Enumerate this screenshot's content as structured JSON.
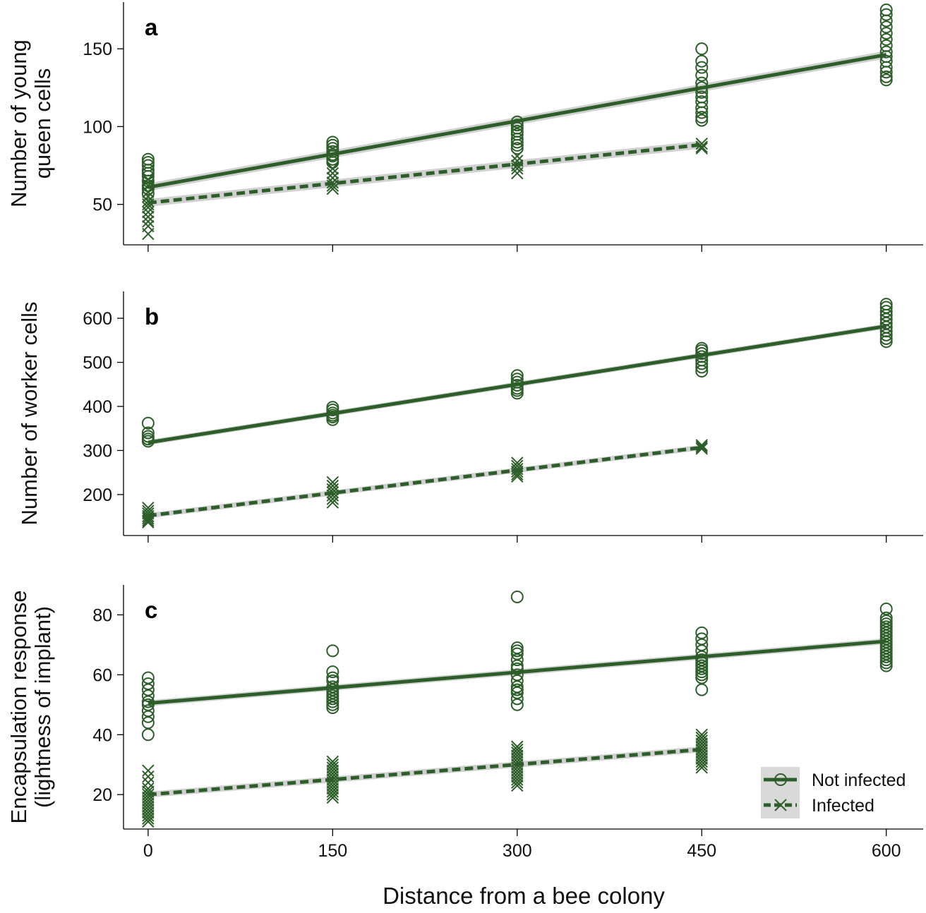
{
  "colors": {
    "series": "#2d5e2a",
    "ci_band": "#c8c8c8",
    "legend_bg": "#d9d9d9"
  },
  "xlabel": "Distance from a bee colony",
  "x_ticks": [
    0,
    150,
    300,
    450,
    600
  ],
  "legend": {
    "not_infected": "Not infected",
    "infected": "Infected",
    "placement": "bottom-right of panel c"
  },
  "chart_data": [
    {
      "type": "scatter",
      "panel": "a",
      "ylabel_lines": [
        "Number of young",
        "queen cells"
      ],
      "ylim": [
        24,
        180
      ],
      "xlim": [
        -20,
        630
      ],
      "yticks": [
        50,
        100,
        150
      ],
      "series": [
        {
          "name": "Not infected",
          "marker": "circle",
          "line": "solid",
          "fit": {
            "intercept": 61,
            "slope": 0.142,
            "xmax": 600,
            "ci": 2.5
          },
          "points": [
            {
              "x": 0,
              "y": [
                79,
                77,
                75,
                72,
                70,
                68,
                65,
                62,
                60,
                57
              ]
            },
            {
              "x": 150,
              "y": [
                90,
                88,
                86,
                84,
                82,
                81,
                79,
                77
              ]
            },
            {
              "x": 300,
              "y": [
                103,
                101,
                99,
                97,
                95,
                92,
                90,
                88,
                86
              ]
            },
            {
              "x": 450,
              "y": [
                150,
                142,
                138,
                133,
                128,
                125,
                122,
                119,
                116,
                112,
                109,
                106,
                104
              ]
            },
            {
              "x": 600,
              "y": [
                175,
                172,
                168,
                164,
                160,
                156,
                152,
                148,
                145,
                142,
                138,
                135,
                132,
                130
              ]
            }
          ]
        },
        {
          "name": "Infected",
          "marker": "x",
          "line": "dashed",
          "fit": {
            "intercept": 51,
            "slope": 0.083,
            "xmax": 450,
            "ci": 2.5
          },
          "points": [
            {
              "x": 0,
              "y": [
                66,
                62,
                58,
                55,
                52,
                50,
                48,
                45,
                42,
                39,
                36,
                31
              ]
            },
            {
              "x": 150,
              "y": [
                73,
                70,
                67,
                64,
                62,
                60
              ]
            },
            {
              "x": 300,
              "y": [
                81,
                78,
                75,
                73,
                70
              ]
            },
            {
              "x": 450,
              "y": [
                89,
                87,
                86
              ]
            }
          ]
        }
      ]
    },
    {
      "type": "scatter",
      "panel": "b",
      "ylabel_lines": [
        "Number of worker cells"
      ],
      "ylim": [
        107,
        661
      ],
      "xlim": [
        -20,
        630
      ],
      "yticks": [
        200,
        300,
        400,
        500,
        600
      ],
      "series": [
        {
          "name": "Not infected",
          "marker": "circle",
          "line": "solid",
          "fit": {
            "intercept": 318,
            "slope": 0.44,
            "xmax": 600,
            "ci": 6
          },
          "points": [
            {
              "x": 0,
              "y": [
                362,
                340,
                332,
                326,
                321
              ]
            },
            {
              "x": 150,
              "y": [
                398,
                392,
                385,
                380,
                376,
                370
              ]
            },
            {
              "x": 300,
              "y": [
                470,
                462,
                455,
                448,
                441,
                436,
                430
              ]
            },
            {
              "x": 450,
              "y": [
                532,
                527,
                520,
                513,
                505,
                497,
                489,
                480
              ]
            },
            {
              "x": 600,
              "y": [
                632,
                625,
                616,
                607,
                598,
                589,
                580,
                571,
                562,
                554,
                547
              ]
            }
          ]
        },
        {
          "name": "Infected",
          "marker": "x",
          "line": "dashed",
          "fit": {
            "intercept": 152,
            "slope": 0.344,
            "xmax": 450,
            "ci": 6
          },
          "points": [
            {
              "x": 0,
              "y": [
                170,
                163,
                157,
                151,
                146,
                141,
                137
              ]
            },
            {
              "x": 150,
              "y": [
                228,
                220,
                212,
                205,
                198,
                190,
                182
              ]
            },
            {
              "x": 300,
              "y": [
                272,
                265,
                258,
                252,
                246,
                241
              ]
            },
            {
              "x": 450,
              "y": [
                312,
                308,
                304
              ]
            }
          ]
        }
      ]
    },
    {
      "type": "scatter",
      "panel": "c",
      "ylabel_lines": [
        "Encapsulation response",
        "(lightness of implant)"
      ],
      "ylim": [
        8.5,
        90
      ],
      "xlim": [
        -20,
        630
      ],
      "yticks": [
        20,
        40,
        60,
        80
      ],
      "series": [
        {
          "name": "Not infected",
          "marker": "circle",
          "line": "solid",
          "fit": {
            "intercept": 50.5,
            "slope": 0.0345,
            "xmax": 600,
            "ci": 1
          },
          "points": [
            {
              "x": 0,
              "y": [
                59,
                57,
                55,
                53,
                51,
                50,
                48,
                46,
                44,
                40
              ]
            },
            {
              "x": 150,
              "y": [
                68,
                61,
                59,
                58,
                56,
                55,
                54,
                53,
                52,
                51,
                50,
                49
              ]
            },
            {
              "x": 300,
              "y": [
                86,
                69,
                68,
                67,
                65,
                63,
                62,
                60,
                58,
                56,
                55,
                54,
                52,
                50
              ]
            },
            {
              "x": 450,
              "y": [
                74,
                72,
                70,
                68,
                66,
                65,
                64,
                63,
                62,
                61,
                60,
                59,
                55
              ]
            },
            {
              "x": 600,
              "y": [
                82,
                79,
                78,
                77,
                76,
                75,
                74,
                73,
                72,
                71,
                70,
                69,
                68,
                67,
                66,
                65,
                64,
                63
              ]
            }
          ]
        },
        {
          "name": "Infected",
          "marker": "x",
          "line": "dashed",
          "fit": {
            "intercept": 20,
            "slope": 0.0335,
            "xmax": 450,
            "ci": 1
          },
          "points": [
            {
              "x": 0,
              "y": [
                28,
                26,
                24,
                22,
                21,
                20,
                19,
                18,
                17,
                16,
                15,
                14,
                13,
                12,
                11
              ]
            },
            {
              "x": 150,
              "y": [
                31,
                30,
                29,
                28,
                27,
                26,
                25,
                24,
                23,
                22,
                21,
                20,
                19
              ]
            },
            {
              "x": 300,
              "y": [
                36,
                35,
                34,
                33,
                32,
                31,
                30,
                29,
                28,
                27,
                26,
                25,
                24,
                23
              ]
            },
            {
              "x": 450,
              "y": [
                40,
                39,
                38,
                37,
                36,
                35,
                34,
                33,
                32,
                31,
                30,
                29
              ]
            }
          ]
        }
      ]
    }
  ]
}
